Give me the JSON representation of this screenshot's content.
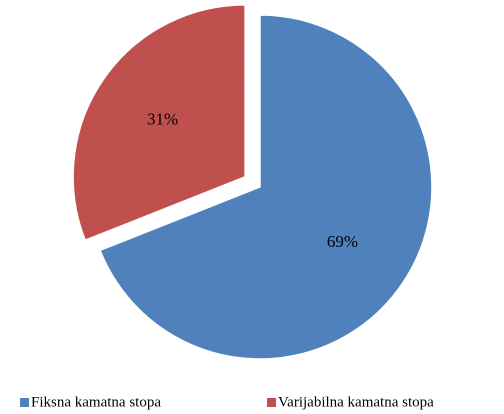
{
  "chart_data": {
    "type": "pie",
    "categories": [
      "Fiksna kamatna stopa",
      "Varijabilna kamatna stopa"
    ],
    "values": [
      69,
      31
    ],
    "value_labels": [
      "69%",
      "31%"
    ],
    "colors": [
      "#4f81bd",
      "#c0504d"
    ],
    "explode": [
      false,
      true
    ],
    "legend": "bottom"
  }
}
